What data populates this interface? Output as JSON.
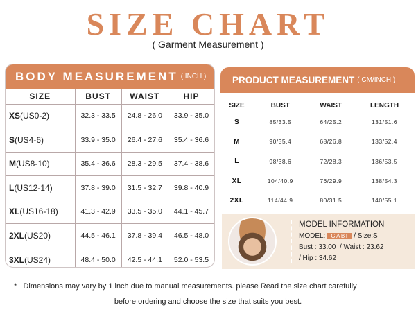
{
  "title": "SIZE CHART",
  "subtitle": "( Garment Measurement )",
  "accent_color": "#d9875a",
  "body": {
    "title": "BODY MEASUREMENT",
    "unit": "( INCH )",
    "columns": [
      "SIZE",
      "BUST",
      "WAIST",
      "HIP"
    ],
    "rows": [
      {
        "size": "XS",
        "us": "(US0-2)",
        "bust": "32.3 - 33.5",
        "waist": "24.8 - 26.0",
        "hip": "33.9 - 35.0"
      },
      {
        "size": "S",
        "us": "(US4-6)",
        "bust": "33.9 - 35.0",
        "waist": "26.4 - 27.6",
        "hip": "35.4 - 36.6"
      },
      {
        "size": "M",
        "us": "(US8-10)",
        "bust": "35.4 - 36.6",
        "waist": "28.3 - 29.5",
        "hip": "37.4 - 38.6"
      },
      {
        "size": "L",
        "us": "(US12-14)",
        "bust": "37.8 - 39.0",
        "waist": "31.5 - 32.7",
        "hip": "39.8 - 40.9"
      },
      {
        "size": "XL",
        "us": "(US16-18)",
        "bust": "41.3 - 42.9",
        "waist": "33.5 - 35.0",
        "hip": "44.1 - 45.7"
      },
      {
        "size": "2XL",
        "us": "(US20)",
        "bust": "44.5 - 46.1",
        "waist": "37.8 - 39.4",
        "hip": "46.5 - 48.0"
      },
      {
        "size": "3XL",
        "us": "(US24)",
        "bust": "48.4 - 50.0",
        "waist": "42.5 - 44.1",
        "hip": "52.0 - 53.5"
      }
    ]
  },
  "product": {
    "title": "PRODUCT MEASUREMENT",
    "unit": "( CM/INCH )",
    "columns": [
      "SIZE",
      "BUST",
      "WAIST",
      "LENGTH"
    ],
    "rows": [
      [
        "S",
        "85/33.5",
        "64/25.2",
        "131/51.6"
      ],
      [
        "M",
        "90/35.4",
        "68/26.8",
        "133/52.4"
      ],
      [
        "L",
        "98/38.6",
        "72/28.3",
        "136/53.5"
      ],
      [
        "XL",
        "104/40.9",
        "76/29.9",
        "138/54.3"
      ],
      [
        "2XL",
        "114/44.9",
        "80/31.5",
        "140/55.1"
      ]
    ]
  },
  "model": {
    "title": "MODEL INFORMATION",
    "model_label": "MODEL:",
    "name": "GABI",
    "size": "/ Size:S",
    "bust": "Bust : 33.00",
    "waist": "/ Waist : 23.62",
    "hip": "/ Hip : 34.62"
  },
  "note": {
    "mark": "*",
    "line1": "Dimensions may vary by 1 inch due to manual measurements.  please Read the size chart carefully",
    "line2": "before ordering and choose the size that suits you best."
  }
}
